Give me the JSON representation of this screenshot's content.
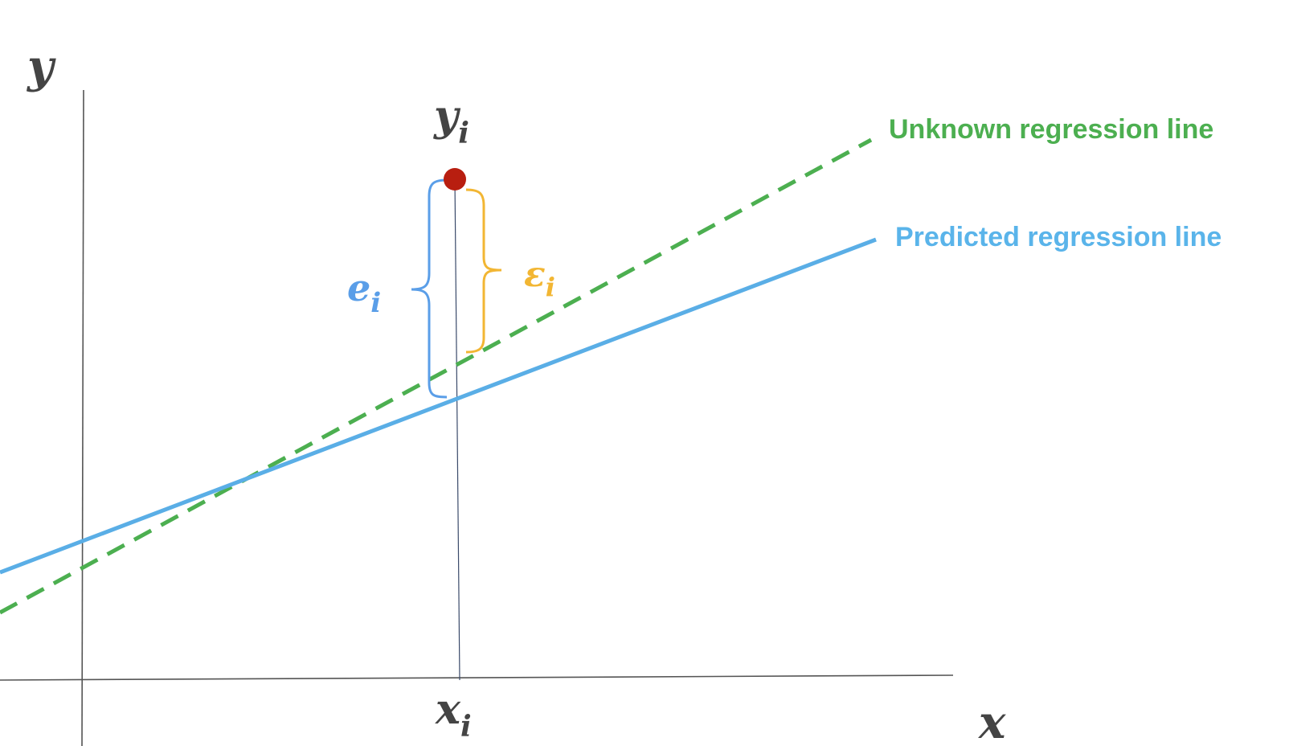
{
  "labels": {
    "y_axis": "y",
    "x_axis": "x",
    "y_i": "y",
    "x_i": "x",
    "e_i": "e",
    "eps_i": "ε",
    "subscript_i": "i"
  },
  "legend": {
    "unknown_line": "Unknown regression line",
    "predicted_line": "Predicted regression line"
  },
  "colors": {
    "axis": "#555555",
    "label_dark": "#444444",
    "unknown_line": "#4caf50",
    "predicted_line": "#5aaee6",
    "point": "#b81e10",
    "e_bracket": "#5a9ee8",
    "eps_bracket": "#f2b633",
    "legend_unknown": "#4caf50",
    "legend_predicted": "#5ab4ea"
  }
}
